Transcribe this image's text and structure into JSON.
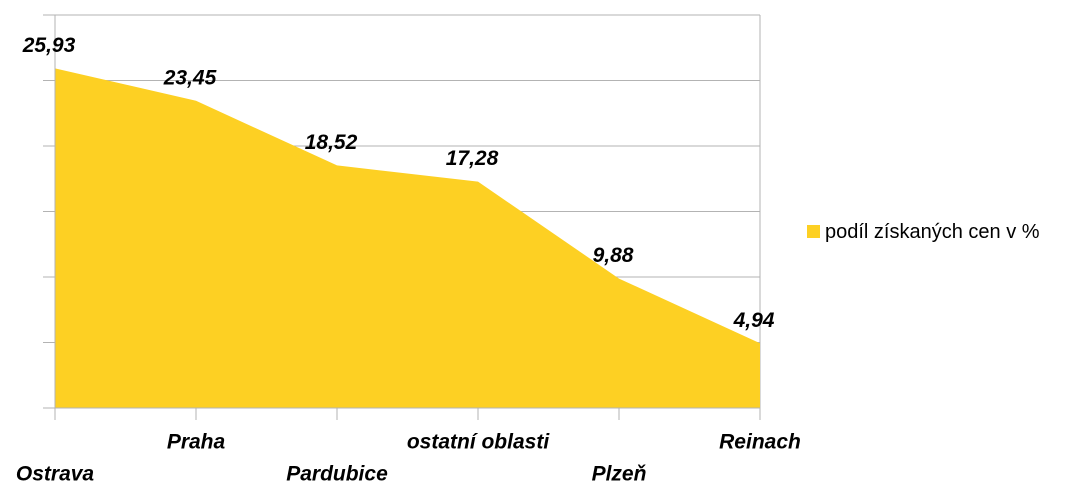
{
  "chart_data": {
    "type": "area",
    "categories": [
      "Ostrava",
      "Praha",
      "Pardubice",
      "ostatní oblasti",
      "Plzeň",
      "Reinach"
    ],
    "series": [
      {
        "name": "podíl získaných cen v %",
        "color": "#fdd023",
        "values": [
          25.93,
          23.45,
          18.52,
          17.28,
          9.88,
          4.94
        ],
        "value_labels": [
          "25,93",
          "23,45",
          "18,52",
          "17,28",
          "9,88",
          "4,94"
        ]
      }
    ],
    "ylim": [
      0,
      30
    ],
    "yticks": [
      0,
      5,
      10,
      15,
      20,
      25,
      30
    ],
    "grid": true,
    "legend": "right"
  }
}
